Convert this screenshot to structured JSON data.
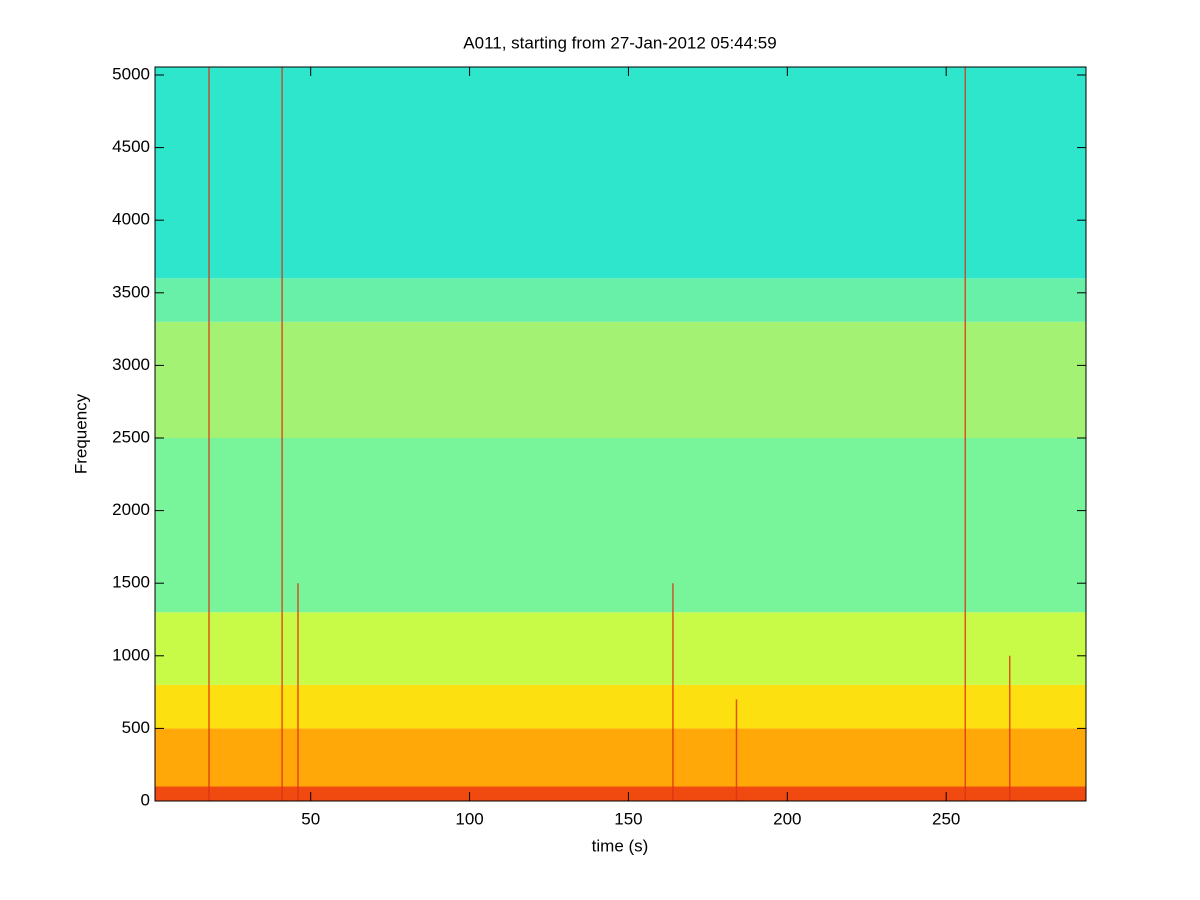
{
  "chart_data": {
    "type": "spectrogram",
    "title": "A011, starting from 27-Jan-2012 05:44:59",
    "xlabel": "time (s)",
    "ylabel": "Frequency",
    "xlim": [
      1,
      294
    ],
    "ylim": [
      0,
      5055
    ],
    "xticks": [
      50,
      100,
      150,
      200,
      250
    ],
    "yticks": [
      0,
      500,
      1000,
      1500,
      2000,
      2500,
      3000,
      3500,
      4000,
      4500,
      5000
    ],
    "bands": [
      {
        "from": 0,
        "to": 100,
        "color": "#f04a10"
      },
      {
        "from": 100,
        "to": 500,
        "color": "#ffa808"
      },
      {
        "from": 500,
        "to": 800,
        "color": "#fde010"
      },
      {
        "from": 800,
        "to": 1300,
        "color": "#c8fa48"
      },
      {
        "from": 1300,
        "to": 2500,
        "color": "#78f49a"
      },
      {
        "from": 2500,
        "to": 3300,
        "color": "#a4f274"
      },
      {
        "from": 3300,
        "to": 3600,
        "color": "#68f0a8"
      },
      {
        "from": 3600,
        "to": 5055,
        "color": "#2ee6cc"
      }
    ],
    "events": [
      {
        "t": 18,
        "top": 5055
      },
      {
        "t": 41,
        "top": 5055
      },
      {
        "t": 46,
        "top": 1500
      },
      {
        "t": 164,
        "top": 1500
      },
      {
        "t": 184,
        "top": 700
      },
      {
        "t": 256,
        "top": 5055
      },
      {
        "t": 270,
        "top": 1000
      }
    ],
    "event_color": "#e03010"
  }
}
